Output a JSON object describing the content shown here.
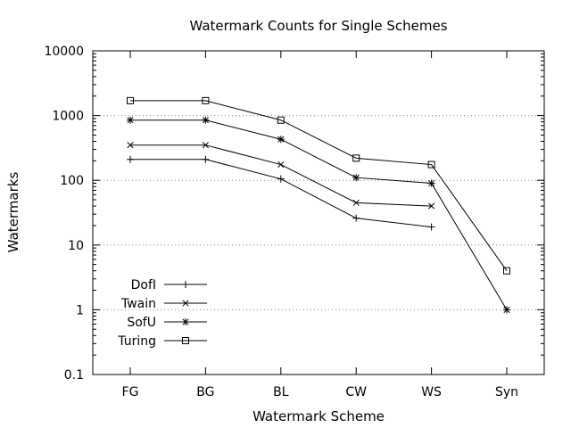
{
  "chart_data": {
    "type": "line",
    "title": "Watermark Counts for Single Schemes",
    "xlabel": "Watermark Scheme",
    "ylabel": "Watermarks",
    "categories": [
      "FG",
      "BG",
      "BL",
      "CW",
      "WS",
      "Syn"
    ],
    "y_scale": "log",
    "ylim": [
      0.1,
      10000
    ],
    "y_ticks": [
      {
        "value": 0.1,
        "label": "0.1"
      },
      {
        "value": 1,
        "label": "1"
      },
      {
        "value": 10,
        "label": "10"
      },
      {
        "value": 100,
        "label": "100"
      },
      {
        "value": 1000,
        "label": "1000"
      },
      {
        "value": 10000,
        "label": "10000"
      }
    ],
    "grid": "horizontal dotted",
    "legend_position": "bottom-left",
    "series": [
      {
        "name": "DofI",
        "marker": "plus",
        "values": [
          210,
          210,
          105,
          26,
          19,
          null
        ]
      },
      {
        "name": "Twain",
        "marker": "cross",
        "values": [
          350,
          350,
          175,
          45,
          40,
          null
        ]
      },
      {
        "name": "SofU",
        "marker": "star",
        "values": [
          850,
          850,
          430,
          110,
          90,
          1
        ]
      },
      {
        "name": "Turing",
        "marker": "square",
        "values": [
          1700,
          1700,
          850,
          220,
          175,
          4
        ]
      }
    ]
  }
}
